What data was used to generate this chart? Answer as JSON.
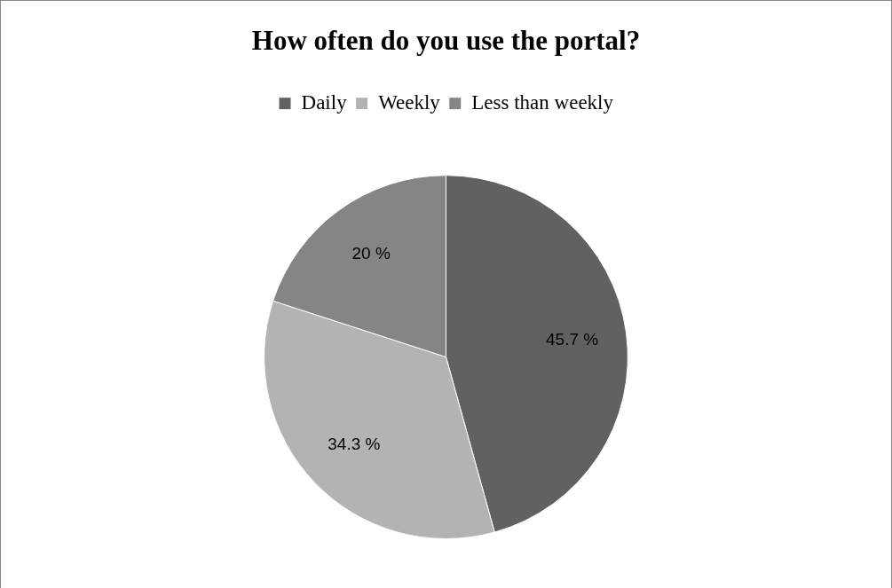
{
  "chart_data": {
    "type": "pie",
    "title": "How often do you use the portal?",
    "categories": [
      "Daily",
      "Weekly",
      "Less than weekly"
    ],
    "values": [
      45.7,
      34.3,
      20
    ],
    "colors": [
      "#616161",
      "#b3b3b3",
      "#858585"
    ],
    "value_labels": [
      "45.7 %",
      "34.3 %",
      "20 %"
    ],
    "legend": "top"
  }
}
